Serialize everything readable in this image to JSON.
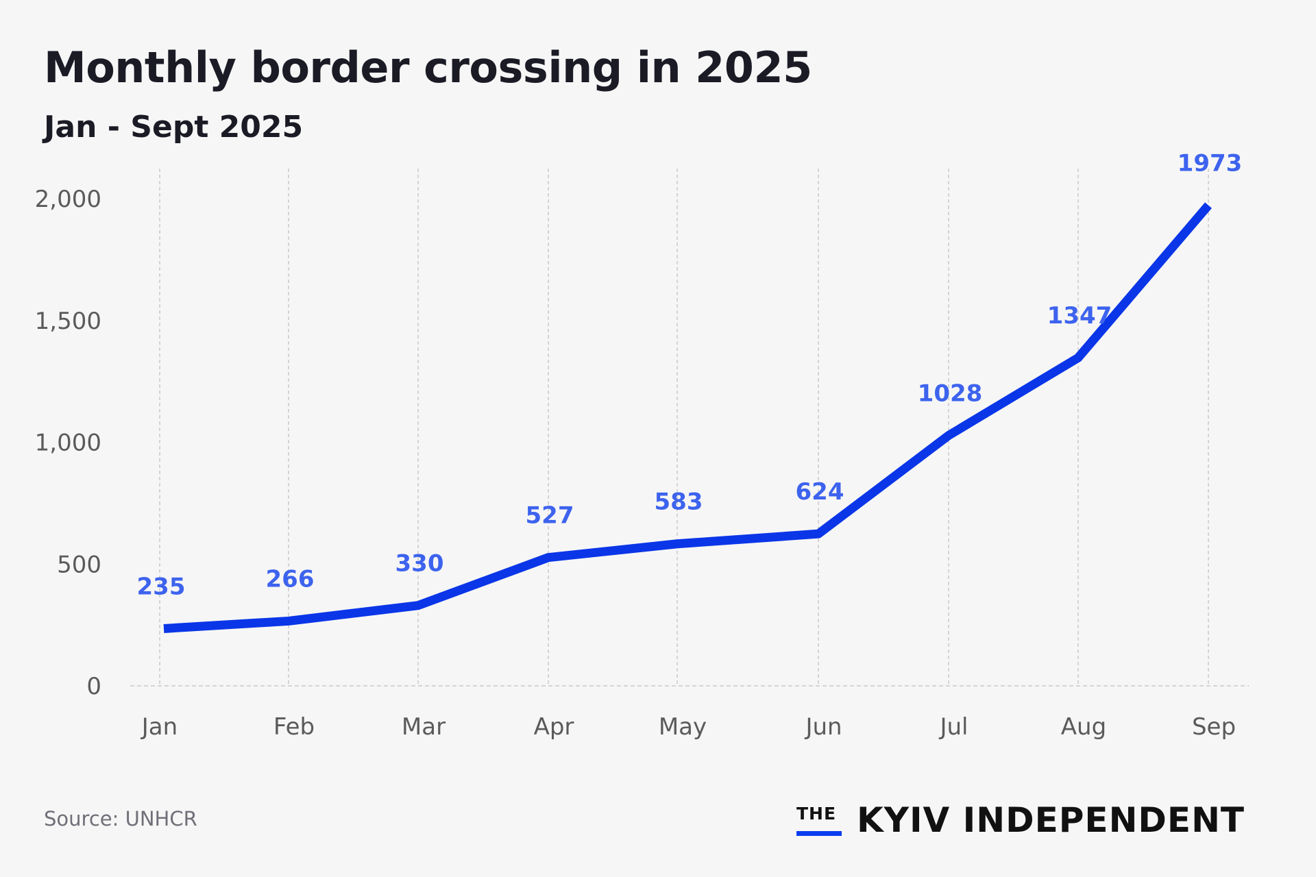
{
  "title": "Monthly border crossing in 2025",
  "subtitle": "Jan - Sept 2025",
  "source": "Source: UNHCR",
  "logo": {
    "the": "THE",
    "name": "KYIV INDEPENDENT",
    "accent": "#0a3cf0"
  },
  "chart_data": {
    "type": "line",
    "categories": [
      "Jan",
      "Feb",
      "Mar",
      "Apr",
      "May",
      "Jun",
      "Jul",
      "Aug",
      "Sep"
    ],
    "series": [
      {
        "values": [
          235,
          266,
          330,
          527,
          583,
          624,
          1028,
          1347,
          1973
        ]
      }
    ],
    "data_labels": [
      "235",
      "266",
      "330",
      "527",
      "583",
      "624",
      "1028",
      "1347",
      "1973"
    ],
    "yticks": [
      0,
      500,
      1000,
      1500,
      2000
    ],
    "ytick_labels": [
      "0",
      "500",
      "1,000",
      "1,500",
      "2,000"
    ],
    "ylim": [
      0,
      2000
    ],
    "grid": "vertical dashed",
    "line_color": "#0a36e8",
    "label_color": "#3d63ee"
  }
}
